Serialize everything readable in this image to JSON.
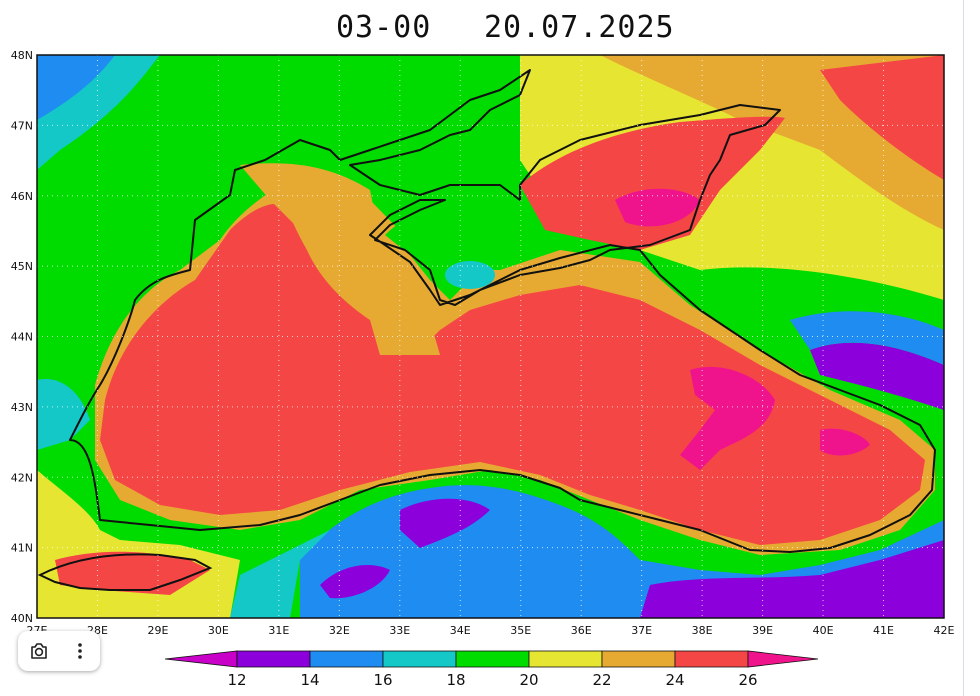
{
  "title": {
    "forecast_time": "03-00",
    "date": "20.07.2025"
  },
  "map": {
    "region": "Black Sea",
    "lon_range": [
      27,
      42
    ],
    "lat_range": [
      40,
      48
    ],
    "lon_ticks": [
      "27E",
      "28E",
      "29E",
      "30E",
      "31E",
      "32E",
      "33E",
      "34E",
      "35E",
      "36E",
      "37E",
      "38E",
      "39E",
      "40E",
      "41E",
      "42E"
    ],
    "lat_ticks": [
      "48N",
      "47N",
      "46N",
      "45N",
      "44N",
      "43N",
      "42N",
      "41N",
      "40N"
    ],
    "grid": "dotted"
  },
  "colorbar": {
    "labels": [
      "12",
      "14",
      "16",
      "18",
      "20",
      "22",
      "24",
      "26"
    ],
    "colors": [
      "#c800c8",
      "#8c00dc",
      "#1e8cf0",
      "#14c8c8",
      "#00dc00",
      "#e6e632",
      "#e6aa32",
      "#f54646",
      "#f0148c"
    ]
  },
  "toolbar": {
    "icons": [
      "camera-icon",
      "more-vertical-icon"
    ]
  }
}
